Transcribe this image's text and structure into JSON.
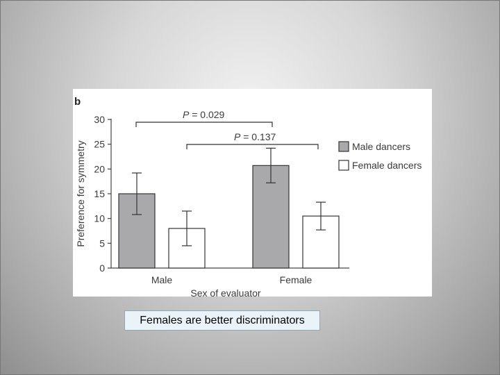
{
  "caption": "Females are better discriminators",
  "colors": {
    "male_dancers": "#a9a9ac",
    "female_dancers": "#ffffff",
    "text": "#3a3a3a"
  },
  "chart_data": {
    "type": "bar",
    "panel_label": "b",
    "categories": [
      "Male",
      "Female"
    ],
    "series": [
      {
        "name": "Male dancers",
        "values": [
          15,
          20.7
        ],
        "errors": [
          4.2,
          3.5
        ]
      },
      {
        "name": "Female dancers",
        "values": [
          8,
          10.5
        ],
        "errors": [
          3.5,
          2.8
        ]
      }
    ],
    "xlabel": "Sex of evaluator",
    "ylabel": "Preference for symmetry",
    "ylim": [
      0,
      30
    ],
    "yticks": [
      "0",
      "5",
      "10",
      "15",
      "20",
      "25",
      "30"
    ],
    "grid": false,
    "legend_position": "right",
    "annotations": [
      {
        "p_label": "P",
        "value_text": " = 0.029",
        "from": "Male dancers / Male",
        "to": "Male dancers / Female"
      },
      {
        "p_label": "P",
        "value_text": " = 0.137",
        "from": "Female dancers / Male",
        "to": "Female dancers / Female"
      }
    ]
  }
}
